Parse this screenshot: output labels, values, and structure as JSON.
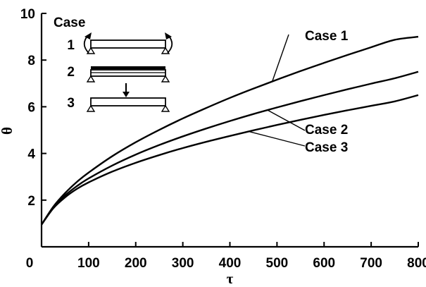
{
  "chart_data": {
    "type": "line",
    "title": "",
    "xlabel": "τ",
    "ylabel": "θ",
    "xlim": [
      0,
      800
    ],
    "ylim": [
      0,
      10
    ],
    "xticks": [
      "0",
      "100",
      "200",
      "300",
      "400",
      "500",
      "600",
      "700",
      "800"
    ],
    "yticks": [
      "2",
      "4",
      "6",
      "8",
      "10"
    ],
    "grid": false,
    "legend": {
      "title": "Case",
      "entries": [
        {
          "number": "1",
          "description": "beam with end moments"
        },
        {
          "number": "2",
          "description": "beam with uniform load"
        },
        {
          "number": "3",
          "description": "beam with central point load"
        }
      ],
      "placement": "top-left"
    },
    "series": [
      {
        "name": "Case 1",
        "x": [
          0,
          25,
          50,
          75,
          100,
          150,
          200,
          250,
          300,
          350,
          400,
          450,
          500,
          550,
          600,
          650,
          700,
          750,
          800
        ],
        "y": [
          0.95,
          1.72,
          2.3,
          2.78,
          3.18,
          3.88,
          4.48,
          5.01,
          5.5,
          5.95,
          6.38,
          6.78,
          7.16,
          7.53,
          7.88,
          8.22,
          8.55,
          8.87,
          9.0
        ]
      },
      {
        "name": "Case 2",
        "x": [
          0,
          25,
          50,
          75,
          100,
          150,
          200,
          250,
          300,
          350,
          400,
          450,
          500,
          550,
          600,
          650,
          700,
          750,
          800
        ],
        "y": [
          0.95,
          1.68,
          2.2,
          2.6,
          2.93,
          3.48,
          3.95,
          4.36,
          4.73,
          5.07,
          5.39,
          5.69,
          5.97,
          6.24,
          6.5,
          6.75,
          6.99,
          7.22,
          7.5
        ]
      },
      {
        "name": "Case 3",
        "x": [
          0,
          25,
          50,
          75,
          100,
          150,
          200,
          250,
          300,
          350,
          400,
          450,
          500,
          550,
          600,
          650,
          700,
          750,
          800
        ],
        "y": [
          0.95,
          1.65,
          2.12,
          2.48,
          2.76,
          3.22,
          3.6,
          3.93,
          4.23,
          4.5,
          4.75,
          4.99,
          5.22,
          5.44,
          5.65,
          5.85,
          6.04,
          6.23,
          6.5
        ]
      }
    ],
    "annotations": [
      {
        "text": "Case 1",
        "series": "Case 1",
        "x": 490
      },
      {
        "text": "Case 2",
        "series": "Case 2",
        "x": 480
      },
      {
        "text": "Case 3",
        "series": "Case 3",
        "x": 440
      }
    ]
  }
}
